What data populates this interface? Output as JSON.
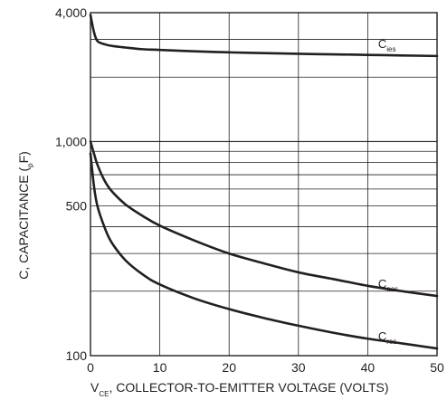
{
  "chart_data": {
    "type": "line",
    "title": "",
    "ylabel": {
      "main": "C, CAPACITANCE  (",
      "sub": "p",
      "end": "F)"
    },
    "xlabel": {
      "prefix": "V",
      "sub": "CE",
      "rest": ", COLLECTOR-TO-EMITTER VOLTAGE (VOLTS)"
    },
    "x_scale": "linear",
    "y_scale": "log",
    "xlim": [
      0,
      50
    ],
    "ylim": [
      100,
      4000
    ],
    "grid": true,
    "x_ticks": [
      {
        "value": 0,
        "label": "0"
      },
      {
        "value": 10,
        "label": "10"
      },
      {
        "value": 20,
        "label": "20"
      },
      {
        "value": 30,
        "label": "30"
      },
      {
        "value": 40,
        "label": "40"
      },
      {
        "value": 50,
        "label": "50"
      }
    ],
    "y_ticks": [
      {
        "value": 100,
        "label": "100"
      },
      {
        "value": 500,
        "label": "500"
      },
      {
        "value": 1000,
        "label": "1,000"
      },
      {
        "value": 4000,
        "label": "4,000"
      }
    ],
    "y_gridlines": [
      100,
      200,
      300,
      400,
      500,
      600,
      700,
      800,
      900,
      1000,
      2000,
      3000,
      4000
    ],
    "series": [
      {
        "name": "C_ies",
        "label_main": "C",
        "label_sub": "ies",
        "x": [
          0,
          0.5,
          1,
          2,
          3,
          5,
          7.5,
          10,
          15,
          20,
          25,
          30,
          35,
          40,
          45,
          50
        ],
        "y": [
          3900,
          3250,
          2950,
          2850,
          2800,
          2750,
          2700,
          2680,
          2640,
          2610,
          2590,
          2570,
          2555,
          2540,
          2525,
          2510
        ]
      },
      {
        "name": "C_oes",
        "label_main": "C",
        "label_sub": "oes",
        "x": [
          0,
          0.5,
          1,
          2,
          3,
          5,
          7.5,
          10,
          15,
          20,
          25,
          30,
          35,
          40,
          45,
          50
        ],
        "y": [
          1000,
          880,
          780,
          660,
          590,
          510,
          450,
          405,
          345,
          300,
          270,
          245,
          228,
          212,
          200,
          190
        ]
      },
      {
        "name": "C_res",
        "label_main": "C",
        "label_sub": "res",
        "x": [
          0,
          0.5,
          1,
          2,
          3,
          5,
          7.5,
          10,
          15,
          20,
          25,
          30,
          35,
          40,
          45,
          50
        ],
        "y": [
          880,
          620,
          500,
          400,
          340,
          280,
          240,
          215,
          185,
          165,
          150,
          138,
          128,
          120,
          114,
          108
        ]
      }
    ],
    "colors": {
      "line": "#231f20",
      "grid": "#231f20",
      "background": "#ffffff"
    }
  }
}
